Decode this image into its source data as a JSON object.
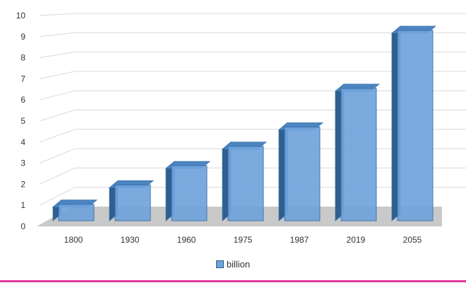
{
  "colors": {
    "bar_front": "#6fa3dc",
    "bar_side": "#2f5f8f",
    "bar_top": "#4d85c2",
    "bar_stroke": "#3a6fa8",
    "floor": "#c9c9c9",
    "gridline": "#d9d9d9",
    "axis_text": "#333333",
    "accent_line": "#e0369b"
  },
  "chart_data": {
    "type": "bar",
    "style": "3d-column",
    "categories": [
      "1800",
      "1930",
      "1960",
      "1975",
      "1987",
      "2019",
      "2055"
    ],
    "series": [
      {
        "name": "billion",
        "values": [
          1,
          2,
          3,
          4,
          5,
          7,
          10
        ]
      }
    ],
    "y_ticks": [
      "0",
      "1",
      "2",
      "3",
      "4",
      "5",
      "6",
      "7",
      "8",
      "9",
      "10"
    ],
    "ylim": [
      0,
      10
    ],
    "grid": true,
    "legend_position": "bottom",
    "title": "",
    "xlabel": "",
    "ylabel": ""
  }
}
